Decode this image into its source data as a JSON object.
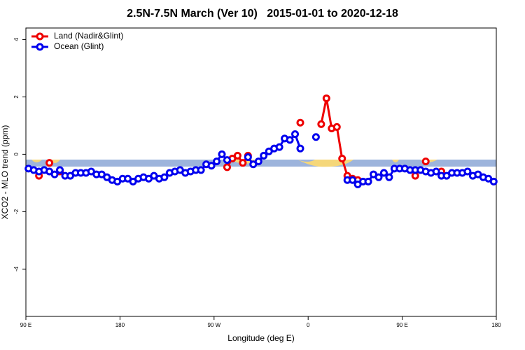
{
  "chart_data": {
    "type": "line",
    "title": "2.5N-7.5N March (Ver 10)   2015-01-01 to 2020-12-18",
    "xlabel": "Longitude (deg E)",
    "ylabel": "XCO2 - MLO trend (ppm)",
    "xlim": [
      90,
      540
    ],
    "ylim": [
      -5.65,
      4.4
    ],
    "xticks": [
      {
        "value": 90,
        "label": "90 E"
      },
      180,
      {
        "value": 270,
        "label": "90 W"
      },
      {
        "value": 360,
        "label": "0"
      },
      {
        "value": 450,
        "label": "90 E"
      },
      {
        "value": 540,
        "label": "180"
      }
    ],
    "yticks": [
      -4,
      -2,
      0,
      2,
      4
    ],
    "legend": "top-left",
    "x": [
      92.5,
      97.5,
      102.5,
      107.5,
      112.5,
      117.5,
      122.5,
      127.5,
      132.5,
      137.5,
      142.5,
      147.5,
      152.5,
      157.5,
      162.5,
      167.5,
      172.5,
      177.5,
      182.5,
      187.5,
      192.5,
      197.5,
      202.5,
      207.5,
      212.5,
      217.5,
      222.5,
      227.5,
      232.5,
      237.5,
      242.5,
      247.5,
      252.5,
      257.5,
      262.5,
      267.5,
      272.5,
      277.5,
      282.5,
      287.5,
      292.5,
      297.5,
      302.5,
      307.5,
      312.5,
      317.5,
      322.5,
      327.5,
      332.5,
      337.5,
      342.5,
      347.5,
      352.5,
      357.5,
      362.5,
      367.5,
      372.5,
      377.5,
      382.5,
      387.5,
      392.5,
      397.5,
      402.5,
      407.5,
      412.5,
      417.5,
      422.5,
      427.5,
      432.5,
      437.5,
      442.5,
      447.5,
      452.5,
      457.5,
      462.5,
      467.5,
      472.5,
      477.5,
      482.5,
      487.5,
      492.5,
      497.5,
      502.5,
      507.5,
      512.5,
      517.5,
      522.5,
      527.5,
      532.5,
      537.5
    ],
    "series": [
      {
        "name": "Land (Nadir&Glint)",
        "color": "#ee0000",
        "values": [
          null,
          null,
          -0.75,
          null,
          -0.3,
          null,
          -0.6,
          null,
          null,
          null,
          null,
          null,
          null,
          null,
          null,
          null,
          null,
          null,
          null,
          null,
          null,
          null,
          null,
          null,
          null,
          null,
          null,
          null,
          null,
          null,
          null,
          null,
          null,
          null,
          null,
          null,
          null,
          null,
          -0.45,
          -0.15,
          -0.05,
          -0.3,
          -0.05,
          null,
          null,
          null,
          null,
          null,
          null,
          null,
          null,
          null,
          1.1,
          null,
          null,
          null,
          1.05,
          1.95,
          0.9,
          0.95,
          -0.15,
          -0.75,
          -0.85,
          -0.9,
          null,
          null,
          null,
          null,
          null,
          null,
          null,
          null,
          null,
          null,
          -0.75,
          null,
          -0.25,
          null,
          null,
          -0.6,
          null,
          null,
          null,
          null,
          null,
          null,
          null,
          null,
          null,
          null
        ]
      },
      {
        "name": "Ocean (Glint)",
        "color": "#0000ee",
        "values": [
          -0.5,
          -0.55,
          -0.6,
          -0.55,
          -0.6,
          -0.7,
          -0.55,
          -0.75,
          -0.75,
          -0.65,
          -0.65,
          -0.65,
          -0.6,
          -0.7,
          -0.7,
          -0.8,
          -0.9,
          -0.95,
          -0.85,
          -0.85,
          -0.95,
          -0.85,
          -0.8,
          -0.85,
          -0.75,
          -0.85,
          -0.8,
          -0.65,
          -0.6,
          -0.55,
          -0.65,
          -0.6,
          -0.55,
          -0.55,
          -0.35,
          -0.4,
          -0.25,
          0.0,
          -0.2,
          null,
          null,
          null,
          -0.1,
          -0.35,
          -0.25,
          -0.05,
          0.1,
          0.2,
          0.25,
          0.55,
          0.5,
          0.7,
          0.2,
          null,
          null,
          0.6,
          null,
          null,
          null,
          null,
          null,
          -0.9,
          -0.9,
          -1.05,
          -0.95,
          -0.95,
          -0.7,
          -0.8,
          -0.65,
          -0.8,
          -0.5,
          -0.5,
          -0.5,
          -0.55,
          -0.55,
          -0.55,
          -0.6,
          -0.65,
          -0.6,
          -0.75,
          -0.75,
          -0.65,
          -0.65,
          -0.65,
          -0.6,
          -0.75,
          -0.7,
          -0.8,
          -0.85,
          -0.95
        ]
      }
    ]
  }
}
